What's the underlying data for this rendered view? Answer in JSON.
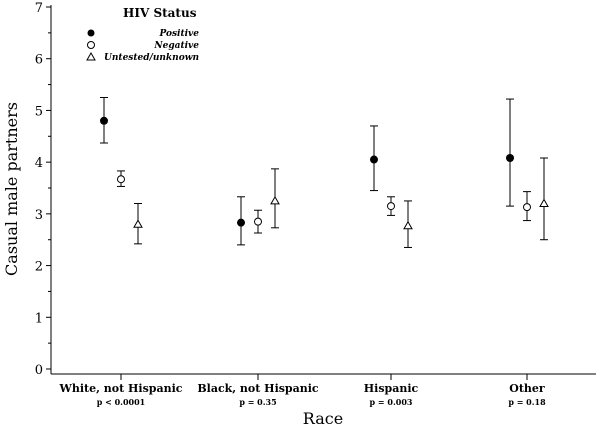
{
  "chart_data": {
    "type": "scatter",
    "xlabel": "Race",
    "ylabel": "Casual male partners",
    "ylim": [
      0,
      7
    ],
    "yticks": [
      "0",
      "1",
      "2",
      "3",
      "4",
      "5",
      "6",
      "7"
    ],
    "categories": [
      "White, not Hispanic",
      "Black, not Hispanic",
      "Hispanic",
      "Other"
    ],
    "pvalues": [
      "p < 0.0001",
      "p = 0.35",
      "p = 0.003",
      "p = 0.18"
    ],
    "legend": {
      "title": "HIV Status",
      "placement": "top-left",
      "entries": [
        "Positive",
        "Negative",
        "Untested/unknown"
      ]
    },
    "series": [
      {
        "name": "Positive",
        "marker": "filled-circle",
        "values": [
          4.8,
          2.83,
          4.05,
          4.08
        ],
        "lower": [
          4.37,
          2.4,
          3.45,
          3.15
        ],
        "upper": [
          5.25,
          3.33,
          4.7,
          5.22
        ]
      },
      {
        "name": "Negative",
        "marker": "open-circle",
        "values": [
          3.67,
          2.85,
          3.15,
          3.13
        ],
        "lower": [
          3.53,
          2.63,
          2.97,
          2.87
        ],
        "upper": [
          3.83,
          3.07,
          3.33,
          3.43
        ]
      },
      {
        "name": "Untested/unknown",
        "marker": "open-triangle",
        "values": [
          2.8,
          3.25,
          2.77,
          3.2
        ],
        "lower": [
          2.42,
          2.73,
          2.35,
          2.5
        ],
        "upper": [
          3.2,
          3.87,
          3.25,
          4.08
        ]
      }
    ]
  }
}
